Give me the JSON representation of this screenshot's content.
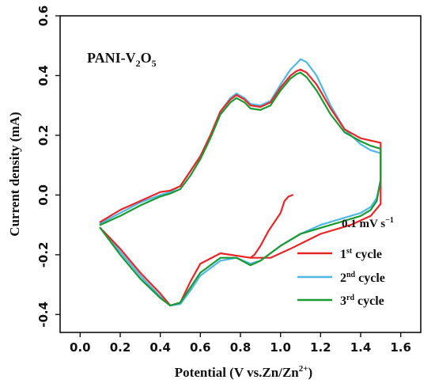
{
  "chart_data": {
    "type": "line",
    "title": "",
    "xlabel": "Potential (V vs.Zn/Zn2+)",
    "ylabel": "Current density (mA)",
    "xlim": [
      -0.1,
      1.7
    ],
    "ylim": [
      -0.46,
      0.6
    ],
    "xticks": [
      "0.0",
      "0.2",
      "0.4",
      "0.6",
      "0.8",
      "1.0",
      "1.2",
      "1.4",
      "1.6"
    ],
    "xtick_values": [
      0.0,
      0.2,
      0.4,
      0.6,
      0.8,
      1.0,
      1.2,
      1.4,
      1.6
    ],
    "yticks": [
      "-0.4",
      "-0.2",
      "0.0",
      "0.2",
      "0.4",
      "0.6"
    ],
    "ytick_values": [
      -0.4,
      -0.2,
      0.0,
      0.2,
      0.4,
      0.6
    ],
    "grid": false,
    "legend_position": "lower-right",
    "annotations": {
      "material": "PANI-V2O5",
      "scan_rate": "0.1 mV s−1"
    },
    "legend": [
      {
        "label": "1st cycle",
        "color": "#e8262a"
      },
      {
        "label": "2nd cycle",
        "color": "#4fb8e6"
      },
      {
        "label": "3rd cycle",
        "color": "#1a9a33"
      }
    ],
    "series": [
      {
        "name": "1st cycle",
        "color": "#e8262a",
        "x": [
          0.1,
          0.2,
          0.3,
          0.4,
          0.45,
          0.5,
          0.55,
          0.6,
          0.65,
          0.7,
          0.75,
          0.78,
          0.82,
          0.85,
          0.9,
          0.95,
          1.0,
          1.05,
          1.08,
          1.1,
          1.13,
          1.18,
          1.25,
          1.32,
          1.4,
          1.5,
          1.5,
          1.45,
          1.35,
          1.2,
          1.05,
          0.95,
          0.85,
          0.75,
          0.7,
          0.6,
          0.55,
          0.5,
          0.45,
          0.4,
          0.3,
          0.2,
          0.1
        ],
        "y": [
          -0.09,
          -0.05,
          -0.02,
          0.01,
          0.015,
          0.03,
          0.08,
          0.13,
          0.2,
          0.28,
          0.32,
          0.335,
          0.32,
          0.3,
          0.295,
          0.31,
          0.36,
          0.4,
          0.415,
          0.42,
          0.41,
          0.37,
          0.29,
          0.22,
          0.19,
          0.175,
          -0.03,
          -0.07,
          -0.1,
          -0.13,
          -0.18,
          -0.21,
          -0.21,
          -0.2,
          -0.195,
          -0.23,
          -0.29,
          -0.36,
          -0.37,
          -0.33,
          -0.26,
          -0.18,
          -0.11
        ]
      },
      {
        "name": "1st cycle (second sweep)",
        "color": "#e8262a",
        "x": [
          1.06,
          1.04,
          1.02,
          1.0,
          0.97,
          0.94,
          0.9,
          0.87,
          0.85
        ],
        "y": [
          0.0,
          -0.005,
          -0.02,
          -0.06,
          -0.09,
          -0.12,
          -0.17,
          -0.2,
          -0.21
        ]
      },
      {
        "name": "2nd cycle",
        "color": "#4fb8e6",
        "x": [
          0.1,
          0.2,
          0.3,
          0.4,
          0.45,
          0.5,
          0.55,
          0.6,
          0.65,
          0.7,
          0.75,
          0.78,
          0.82,
          0.85,
          0.9,
          0.95,
          1.0,
          1.05,
          1.08,
          1.1,
          1.13,
          1.18,
          1.25,
          1.32,
          1.4,
          1.45,
          1.5,
          1.5,
          1.48,
          1.45,
          1.4,
          1.3,
          1.2,
          1.1,
          1.0,
          0.9,
          0.85,
          0.78,
          0.7,
          0.6,
          0.55,
          0.5,
          0.45,
          0.4,
          0.3,
          0.2,
          0.1
        ],
        "y": [
          -0.095,
          -0.06,
          -0.025,
          0.0,
          0.01,
          0.03,
          0.08,
          0.13,
          0.2,
          0.28,
          0.325,
          0.34,
          0.325,
          0.305,
          0.3,
          0.315,
          0.37,
          0.42,
          0.44,
          0.455,
          0.445,
          0.4,
          0.3,
          0.22,
          0.17,
          0.15,
          0.14,
          0.05,
          -0.01,
          -0.04,
          -0.06,
          -0.08,
          -0.1,
          -0.13,
          -0.17,
          -0.22,
          -0.23,
          -0.21,
          -0.22,
          -0.27,
          -0.32,
          -0.365,
          -0.37,
          -0.34,
          -0.27,
          -0.19,
          -0.11
        ]
      },
      {
        "name": "3rd cycle",
        "color": "#1a9a33",
        "x": [
          0.1,
          0.2,
          0.3,
          0.4,
          0.45,
          0.5,
          0.55,
          0.6,
          0.65,
          0.7,
          0.75,
          0.78,
          0.82,
          0.85,
          0.9,
          0.95,
          1.0,
          1.05,
          1.08,
          1.1,
          1.13,
          1.18,
          1.25,
          1.32,
          1.4,
          1.45,
          1.5,
          1.5,
          1.48,
          1.45,
          1.4,
          1.3,
          1.2,
          1.1,
          1.0,
          0.9,
          0.85,
          0.78,
          0.7,
          0.6,
          0.55,
          0.5,
          0.45,
          0.4,
          0.3,
          0.2,
          0.1
        ],
        "y": [
          -0.1,
          -0.07,
          -0.035,
          -0.005,
          0.005,
          0.02,
          0.065,
          0.12,
          0.19,
          0.27,
          0.31,
          0.325,
          0.31,
          0.29,
          0.285,
          0.3,
          0.35,
          0.39,
          0.405,
          0.41,
          0.395,
          0.35,
          0.27,
          0.21,
          0.18,
          0.165,
          0.155,
          0.05,
          -0.02,
          -0.05,
          -0.07,
          -0.09,
          -0.11,
          -0.13,
          -0.17,
          -0.22,
          -0.235,
          -0.21,
          -0.21,
          -0.26,
          -0.31,
          -0.36,
          -0.37,
          -0.345,
          -0.28,
          -0.2,
          -0.11
        ]
      }
    ]
  }
}
